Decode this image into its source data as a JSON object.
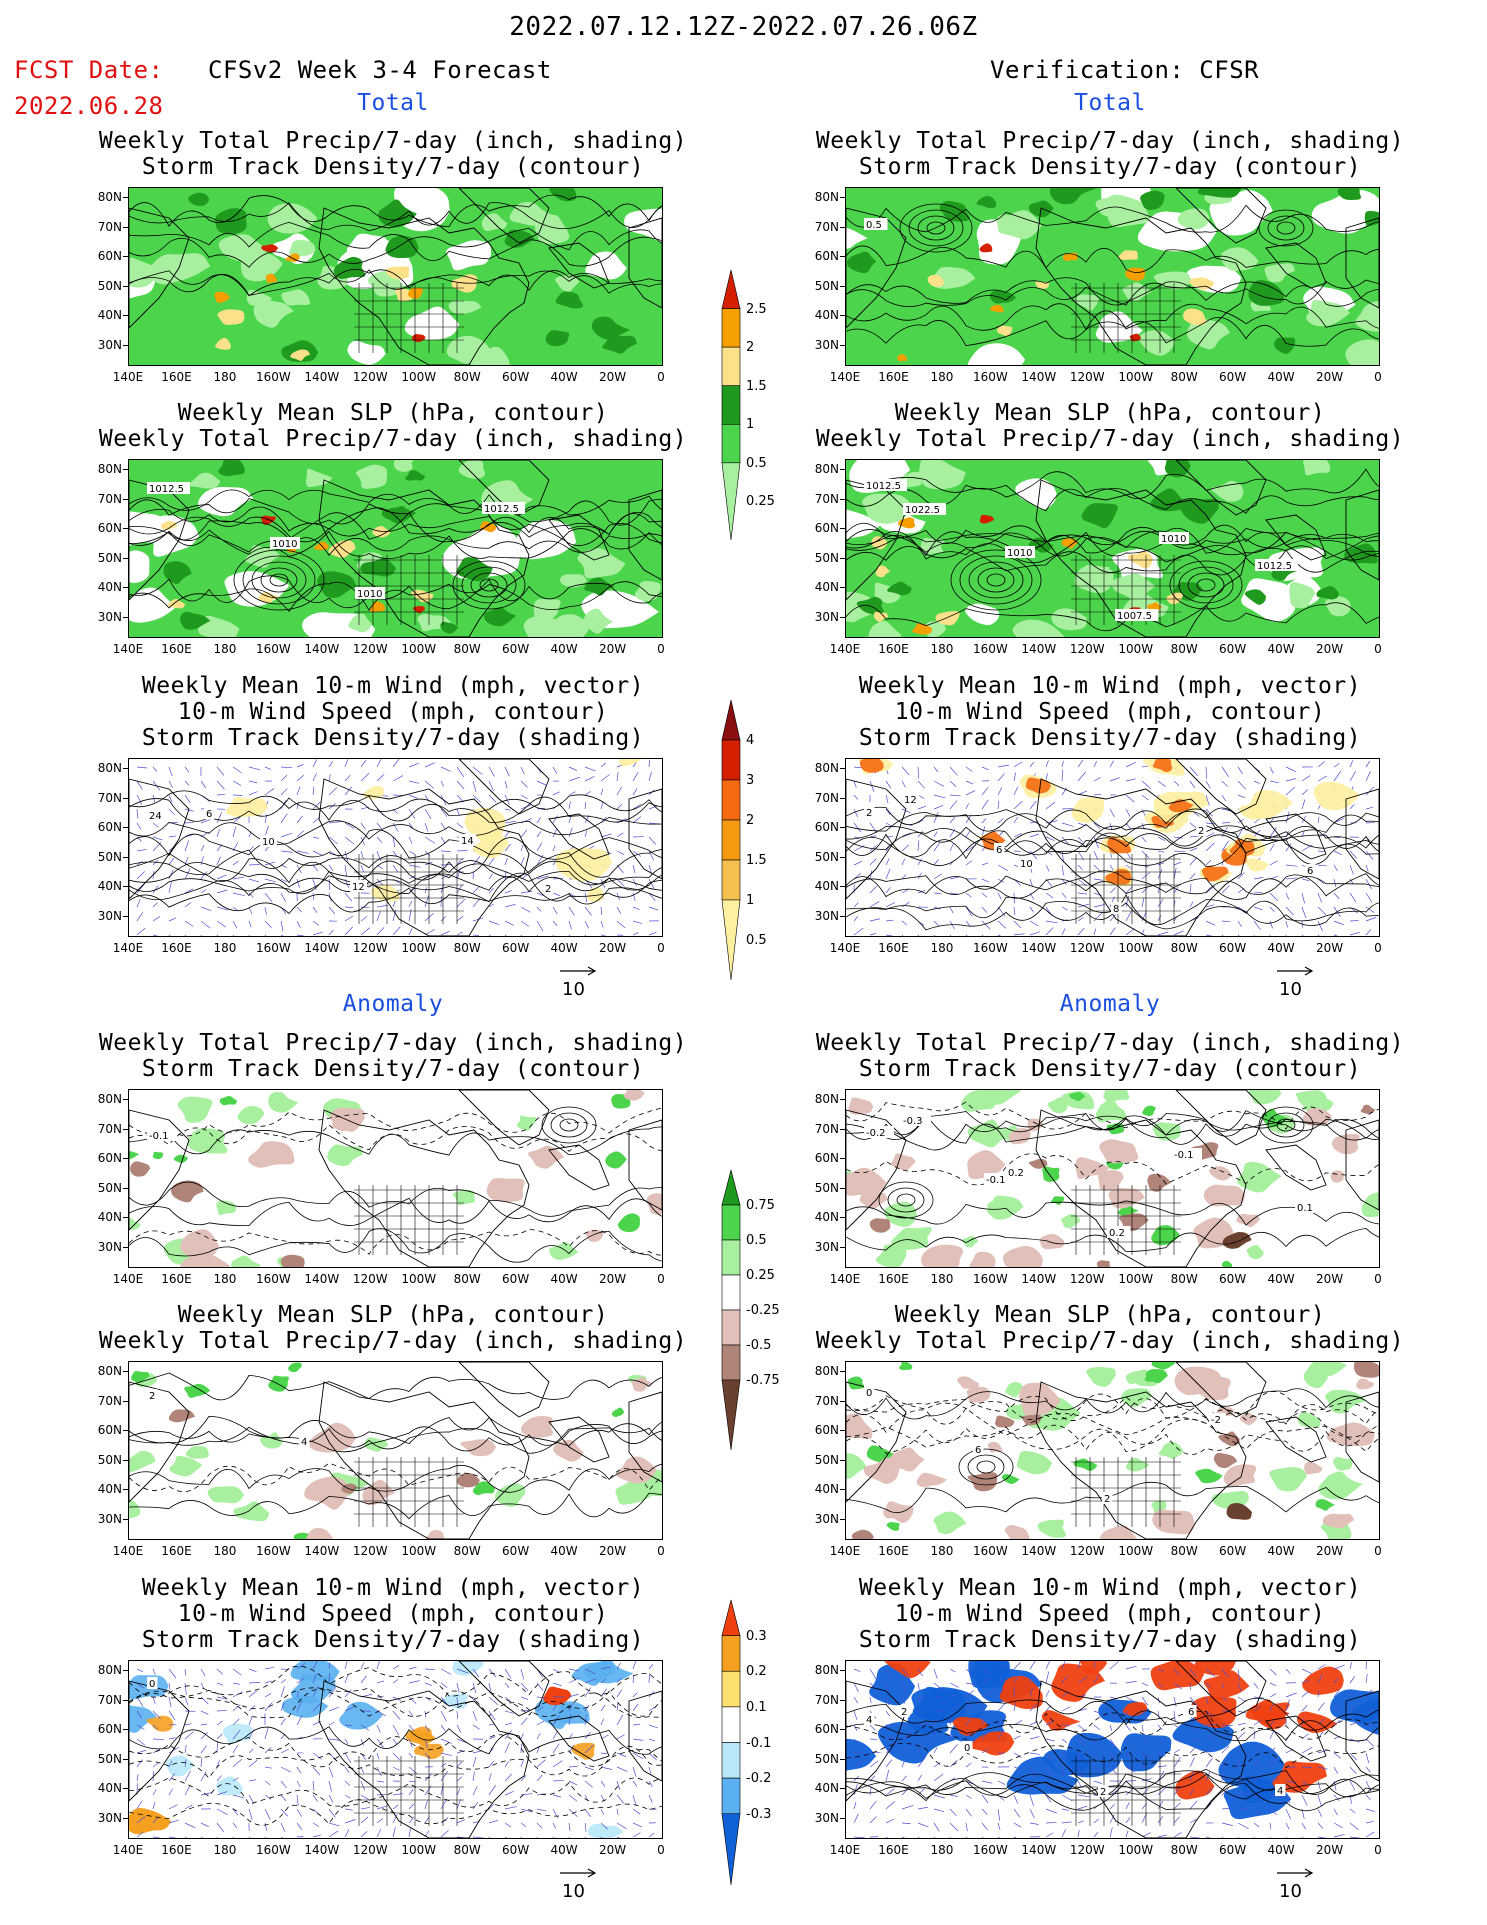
{
  "header": {
    "date_range": "2022.07.12.12Z-2022.07.26.06Z",
    "fcst_label": "FCST Date:",
    "fcst_date": "2022.06.28",
    "left_title": "CFSv2 Week 3-4 Forecast",
    "right_title": "Verification: CFSR"
  },
  "sections": {
    "total": "Total",
    "anomaly": "Anomaly"
  },
  "panel_titles": {
    "precip_storm": [
      "Weekly Total Precip/7-day (inch, shading)",
      "Storm Track Density/7-day (contour)"
    ],
    "slp_precip": [
      "Weekly Mean SLP (hPa, contour)",
      "Weekly Total Precip/7-day (inch, shading)"
    ],
    "wind": [
      "Weekly Mean 10-m Wind (mph, vector)",
      "10-m Wind Speed (mph, contour)",
      "Storm Track Density/7-day (shading)"
    ]
  },
  "axes": {
    "lat_ticks": [
      "80N",
      "70N",
      "60N",
      "50N",
      "40N",
      "30N"
    ],
    "lon_ticks": [
      "140E",
      "160E",
      "180",
      "160W",
      "140W",
      "120W",
      "100W",
      "80W",
      "60W",
      "40W",
      "20W",
      "0"
    ]
  },
  "vector_key": "10",
  "colorbars": {
    "total_precip": {
      "labels": [
        "2.5",
        "2",
        "1.5",
        "1",
        "0.5",
        "0.25"
      ],
      "colors": [
        "#d42000",
        "#f5a000",
        "#fde08a",
        "#1f9a1f",
        "#4cd44c",
        "#a8f0a0"
      ]
    },
    "total_storm": {
      "labels": [
        "4",
        "3",
        "2",
        "1.5",
        "1",
        "0.5"
      ],
      "colors": [
        "#8a1010",
        "#d42000",
        "#f56a10",
        "#f59a10",
        "#f5c050",
        "#fdf0a0"
      ]
    },
    "anom_precip": {
      "labels": [
        "0.75",
        "0.5",
        "0.25",
        "-0.25",
        "-0.5",
        "-0.75"
      ],
      "colors": [
        "#1f9a1f",
        "#4cd44c",
        "#a8f0a0",
        "#ffffff",
        "#e0c0b8",
        "#b08478",
        "#6a4030"
      ]
    },
    "anom_storm": {
      "labels": [
        "0.3",
        "0.2",
        "0.1",
        "-0.1",
        "-0.2",
        "-0.3"
      ],
      "colors": [
        "#f04010",
        "#f5a020",
        "#fde070",
        "#ffffff",
        "#b8e8f8",
        "#5ab0f0",
        "#1060d8"
      ]
    }
  },
  "contour_labels": {
    "l2": [
      "1012.5",
      "1010",
      "1010",
      "1012.5"
    ],
    "r2": [
      "1012.5",
      "1010",
      "1007.5",
      "1010",
      "1012.5",
      "1022.5"
    ],
    "l3": [
      "24",
      "10",
      "12",
      "14",
      "2",
      "6"
    ],
    "r3": [
      "2",
      "6",
      "8",
      "2",
      "6",
      "12",
      "10"
    ],
    "r1": [
      "0.5"
    ],
    "l4": [
      "-0.1"
    ],
    "r4": [
      "-0.2",
      "-0.1",
      "0.2",
      "-0.1",
      "0.1",
      "-0.3",
      "0.2"
    ],
    "l5": [
      "2",
      "4"
    ],
    "r5": [
      "0",
      "6",
      "2",
      "-2"
    ],
    "l6": [
      "0"
    ],
    "r6": [
      "4",
      "0",
      "2",
      "6",
      "4",
      "2"
    ]
  }
}
